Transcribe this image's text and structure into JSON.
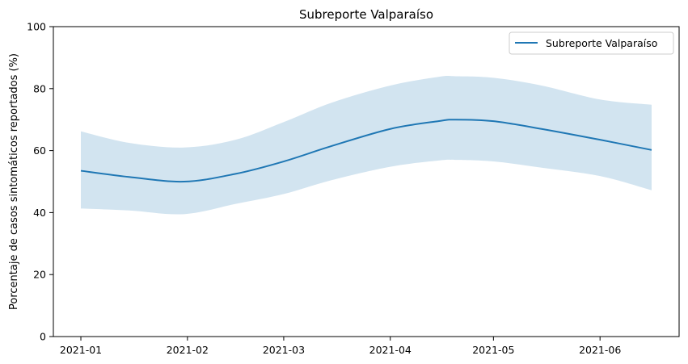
{
  "chart_data": {
    "type": "line",
    "title": "Subreporte Valparaíso",
    "xlabel": "",
    "ylabel": "Porcentaje de casos sintomáticos reportados (%)",
    "ylim": [
      0,
      100
    ],
    "y_ticks": [
      "0",
      "20",
      "40",
      "60",
      "80",
      "100"
    ],
    "x_ticks": [
      "2021-01",
      "2021-02",
      "2021-03",
      "2021-04",
      "2021-05",
      "2021-06"
    ],
    "x_tick_dates": [
      "2021-01-01",
      "2021-02-01",
      "2021-03-01",
      "2021-04-01",
      "2021-05-01",
      "2021-06-01"
    ],
    "grid": false,
    "legend": {
      "position": "top-right",
      "entries": [
        "Subreporte Valparaíso"
      ]
    },
    "colors": {
      "line": "#1f77b4",
      "band": "#1f77b4"
    },
    "series": [
      {
        "name": "Subreporte Valparaíso",
        "x": [
          "2021-01-01",
          "2021-01-15",
          "2021-01-31",
          "2021-02-15",
          "2021-03-01",
          "2021-03-15",
          "2021-04-01",
          "2021-04-15",
          "2021-04-20",
          "2021-05-01",
          "2021-05-15",
          "2021-06-01",
          "2021-06-16"
        ],
        "y": [
          53.5,
          51.5,
          50.0,
          52.5,
          56.5,
          61.5,
          67.0,
          69.5,
          70.0,
          69.5,
          67.0,
          63.5,
          60.2
        ],
        "lower": [
          41.3,
          40.7,
          39.5,
          42.8,
          46.0,
          50.5,
          54.8,
          56.8,
          57.0,
          56.5,
          54.5,
          51.8,
          47.2
        ],
        "upper": [
          66.2,
          62.5,
          61.0,
          63.5,
          69.2,
          75.5,
          81.0,
          83.8,
          84.0,
          83.5,
          81.0,
          76.5,
          74.8
        ]
      }
    ]
  }
}
